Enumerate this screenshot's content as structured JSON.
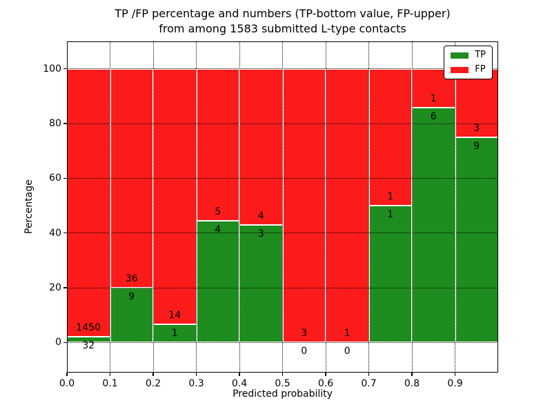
{
  "chart_data": {
    "type": "bar",
    "stacked": true,
    "normalized_to": 100,
    "title": "TP /FP percentage and numbers (TP-bottom value, FP-upper)\nfrom among 1583 submitted L-type contacts",
    "title_line1": "TP /FP percentage and numbers (TP-bottom value, FP-upper)",
    "title_line2": "from among 1583 submitted L-type contacts",
    "total_contacts": 1583,
    "xlabel": "Predicted probability",
    "ylabel": "Percentage",
    "bin_width": 0.1,
    "bin_starts": [
      0.0,
      0.1,
      0.2,
      0.3,
      0.4,
      0.5,
      0.6,
      0.7,
      0.8,
      0.9
    ],
    "series": [
      {
        "name": "TP",
        "color": "#1e8c1e",
        "counts": [
          32,
          9,
          1,
          4,
          3,
          0,
          0,
          1,
          6,
          9
        ]
      },
      {
        "name": "FP",
        "color": "#fb1b1b",
        "counts": [
          1450,
          36,
          14,
          5,
          4,
          3,
          1,
          1,
          1,
          3
        ]
      }
    ],
    "tp_percent": [
      2.16,
      20.0,
      6.67,
      44.44,
      42.86,
      0.0,
      0.0,
      50.0,
      85.71,
      75.0
    ],
    "xticks": [
      "0.0",
      "0.1",
      "0.2",
      "0.3",
      "0.4",
      "0.5",
      "0.6",
      "0.7",
      "0.8",
      "0.9"
    ],
    "yticks": [
      0,
      20,
      40,
      60,
      80,
      100
    ],
    "xlim": [
      0.0,
      1.0
    ],
    "ylim": [
      -11,
      110
    ],
    "grid": "dotted",
    "label_note": "TP count below segment boundary, FP count above segment boundary",
    "legend": {
      "position": "upper-right",
      "entries": [
        {
          "label": "TP",
          "color": "#1e8c1e"
        },
        {
          "label": "FP",
          "color": "#fb1b1b"
        }
      ]
    }
  }
}
